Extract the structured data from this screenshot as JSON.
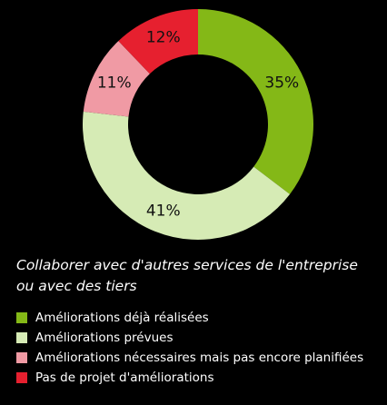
{
  "chart_data": {
    "type": "pie",
    "donut": true,
    "title": "Collaborer avec d'autres services de l'entreprise ou avec des tiers",
    "legend_position": "bottom",
    "slices": [
      {
        "label": "Améliorations déjà réalisées",
        "value": 35,
        "value_label": "35%",
        "color": "#84b817"
      },
      {
        "label": "Améliorations prévues",
        "value": 41,
        "value_label": "41%",
        "color": "#d6ebb5"
      },
      {
        "label": "Améliorations nécessaires mais pas encore planifiées",
        "value": 11,
        "value_label": "11%",
        "color": "#f09aa4"
      },
      {
        "label": "Pas de projet d'améliorations",
        "value": 12,
        "value_label": "12%",
        "color": "#e6202f"
      }
    ]
  }
}
